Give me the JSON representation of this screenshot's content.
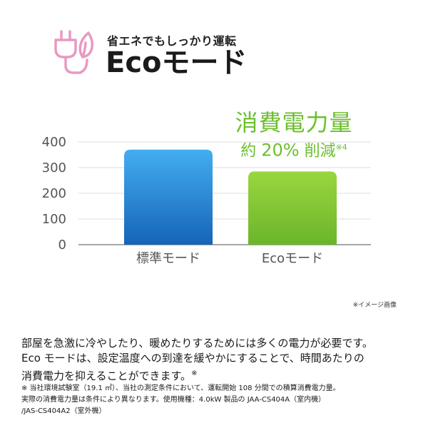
{
  "header": {
    "tagline": "省エネでもしっかり運転",
    "title": "Ecoモード",
    "icon_color": "#e89ac2",
    "icon": "plug-leaf-icon"
  },
  "callout": {
    "line1": "消費電力量",
    "line2_prefix": "約",
    "line2_pct": "20%",
    "line2_suffix": "削減",
    "line2_sup": "※4",
    "color": "#6cbf2e"
  },
  "image_note": "※イメージ画像",
  "description": {
    "line1": "部屋を急激に冷やしたり、暖めたりするためには多くの電力が必要です。",
    "line2": "Eco モードは、設定温度への到達を緩やかにすることで、時間あたりの",
    "line3": "消費電力を抑えることができます。",
    "line3_sup": "※"
  },
  "footnote": {
    "line1": "※ 当社環境試験室（19.1 ㎡）、当社の測定条件において、運転開始 108 分間での積算消費電力量。",
    "line2": "実際の消費電力量は条件により異なります。使用機種：4.0kW 製品の JAA-CS404A（室内機）",
    "line3": "/JAS-CS404A2（室外機）"
  },
  "chart_data": {
    "type": "bar",
    "title": "",
    "xlabel": "",
    "ylabel": "",
    "categories": [
      "標準モード",
      "Ecoモード"
    ],
    "values": [
      370,
      285
    ],
    "ylim": [
      0,
      400
    ],
    "yticks": [
      0,
      100,
      200,
      300,
      400
    ],
    "grid": true,
    "legend": "none",
    "colors": {
      "standard_top": "#43aef0",
      "standard_bottom": "#1664b8",
      "eco_top": "#9ad640",
      "eco_bottom": "#6bb52a",
      "grid": "#dcdcdc",
      "axis": "#888888",
      "tick_text": "#555555"
    }
  }
}
